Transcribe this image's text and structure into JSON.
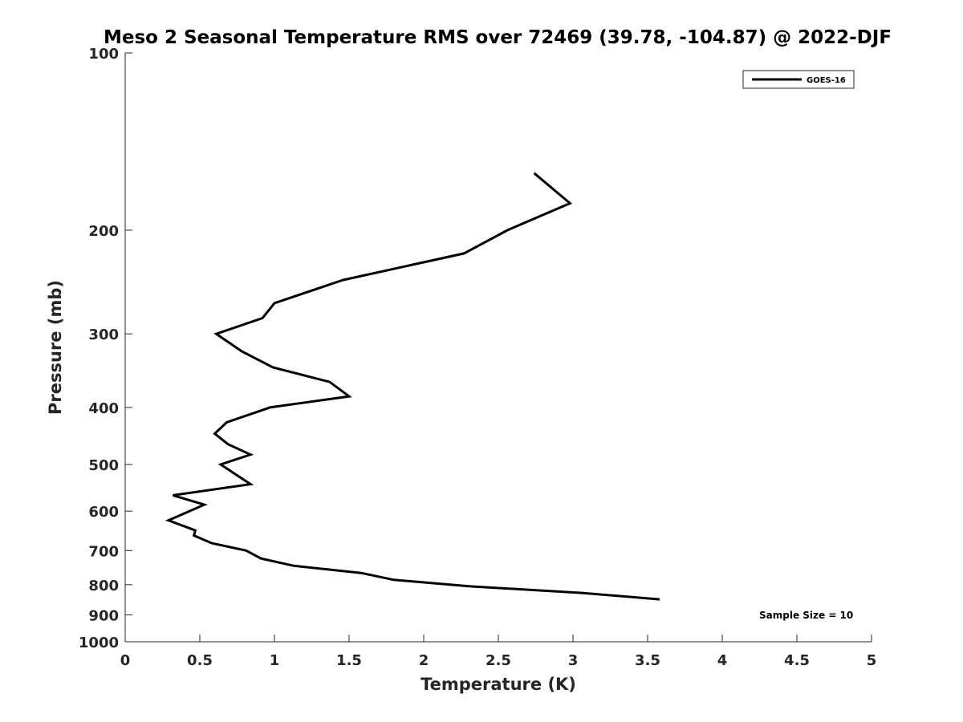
{
  "chart_data": {
    "type": "line",
    "title": "Meso 2 Seasonal Temperature RMS over 72469 (39.78, -104.87) @ 2022-DJF",
    "xlabel": "Temperature (K)",
    "ylabel": "Pressure (mb)",
    "xlim": [
      0,
      5
    ],
    "ylim": [
      100,
      1000
    ],
    "y_scale": "log",
    "y_reversed": true,
    "grid": false,
    "legend_position": "top-right",
    "x_ticks": [
      0,
      0.5,
      1,
      1.5,
      2,
      2.5,
      3,
      3.5,
      4,
      4.5,
      5
    ],
    "x_tick_labels": [
      "0",
      "0.5",
      "1",
      "1.5",
      "2",
      "2.5",
      "3",
      "3.5",
      "4",
      "4.5",
      "5"
    ],
    "y_ticks": [
      100,
      200,
      300,
      400,
      500,
      600,
      700,
      800,
      900,
      1000
    ],
    "y_tick_labels": [
      "100",
      "200",
      "300",
      "400",
      "500",
      "600",
      "700",
      "800",
      "900",
      "1000"
    ],
    "annotation": "Sample Size = 10",
    "series": [
      {
        "name": "GOES-16",
        "color": "#000000",
        "points": [
          {
            "x": 2.74,
            "p": 160
          },
          {
            "x": 2.98,
            "p": 180
          },
          {
            "x": 2.56,
            "p": 200
          },
          {
            "x": 2.27,
            "p": 219
          },
          {
            "x": 1.46,
            "p": 243
          },
          {
            "x": 1.0,
            "p": 266
          },
          {
            "x": 0.92,
            "p": 282
          },
          {
            "x": 0.61,
            "p": 300
          },
          {
            "x": 0.78,
            "p": 321
          },
          {
            "x": 0.99,
            "p": 342
          },
          {
            "x": 1.37,
            "p": 362
          },
          {
            "x": 1.5,
            "p": 383
          },
          {
            "x": 0.97,
            "p": 400
          },
          {
            "x": 0.68,
            "p": 424
          },
          {
            "x": 0.6,
            "p": 443
          },
          {
            "x": 0.69,
            "p": 462
          },
          {
            "x": 0.84,
            "p": 481
          },
          {
            "x": 0.64,
            "p": 500
          },
          {
            "x": 0.84,
            "p": 540
          },
          {
            "x": 0.32,
            "p": 564
          },
          {
            "x": 0.53,
            "p": 585
          },
          {
            "x": 0.29,
            "p": 622
          },
          {
            "x": 0.47,
            "p": 647
          },
          {
            "x": 0.46,
            "p": 660
          },
          {
            "x": 0.58,
            "p": 680
          },
          {
            "x": 0.81,
            "p": 700
          },
          {
            "x": 0.91,
            "p": 722
          },
          {
            "x": 1.13,
            "p": 743
          },
          {
            "x": 1.58,
            "p": 764
          },
          {
            "x": 1.8,
            "p": 785
          },
          {
            "x": 2.31,
            "p": 805
          },
          {
            "x": 3.06,
            "p": 826
          },
          {
            "x": 3.58,
            "p": 847
          }
        ]
      }
    ]
  }
}
